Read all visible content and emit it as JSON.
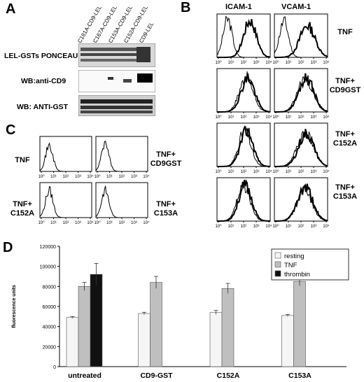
{
  "panelA": {
    "letter": "A",
    "lanes": [
      "C181A-CD9-LEL",
      "C167A-CD9-LEL",
      "C153A-CD9-LEL",
      "C152A-CD9-LEL",
      "CD9-LEL"
    ],
    "rows": [
      "LEL-GSTs PONCEAU",
      "WB:anti-CD9",
      "WB: ANTI-GST"
    ]
  },
  "panelB": {
    "letter": "B",
    "columns": [
      "ICAM-1",
      "VCAM-1"
    ],
    "conditions": [
      "TNF",
      "TNF+\nCD9GST",
      "TNF+\nC152A",
      "TNF+\nC153A"
    ],
    "xticks": [
      "10⁰",
      "10¹",
      "10²",
      "10³",
      "10⁴"
    ]
  },
  "panelC": {
    "letter": "C",
    "conditions": [
      "TNF",
      "TNF+\nCD9GST",
      "TNF+\nC152A",
      "TNF+\nC153A"
    ],
    "xticks": [
      "10⁰",
      "10¹",
      "10²",
      "10³",
      "10⁴"
    ]
  },
  "panelD": {
    "letter": "D",
    "chart_data": {
      "type": "bar",
      "categories": [
        "untreated",
        "CD9-GST",
        "C152A",
        "C153A"
      ],
      "series": [
        {
          "name": "resting",
          "values": [
            49000,
            53000,
            54000,
            51000
          ],
          "errors": [
            800,
            1200,
            2000,
            900
          ],
          "color": "#f5f5f5"
        },
        {
          "name": "TNF",
          "values": [
            80000,
            84000,
            78000,
            85000
          ],
          "errors": [
            4000,
            6000,
            5000,
            4500
          ],
          "color": "#bfbfbf"
        },
        {
          "name": "thrombin",
          "values": [
            92000,
            null,
            null,
            null
          ],
          "errors": [
            11000,
            null,
            null,
            null
          ],
          "color": "#111111"
        }
      ],
      "ylabel": "fluorescence units",
      "ylim": [
        0,
        120000
      ],
      "yticks": [
        "0",
        "20000",
        "40000",
        "60000",
        "80000",
        "100000",
        "120000"
      ],
      "legend": "top-right"
    }
  }
}
